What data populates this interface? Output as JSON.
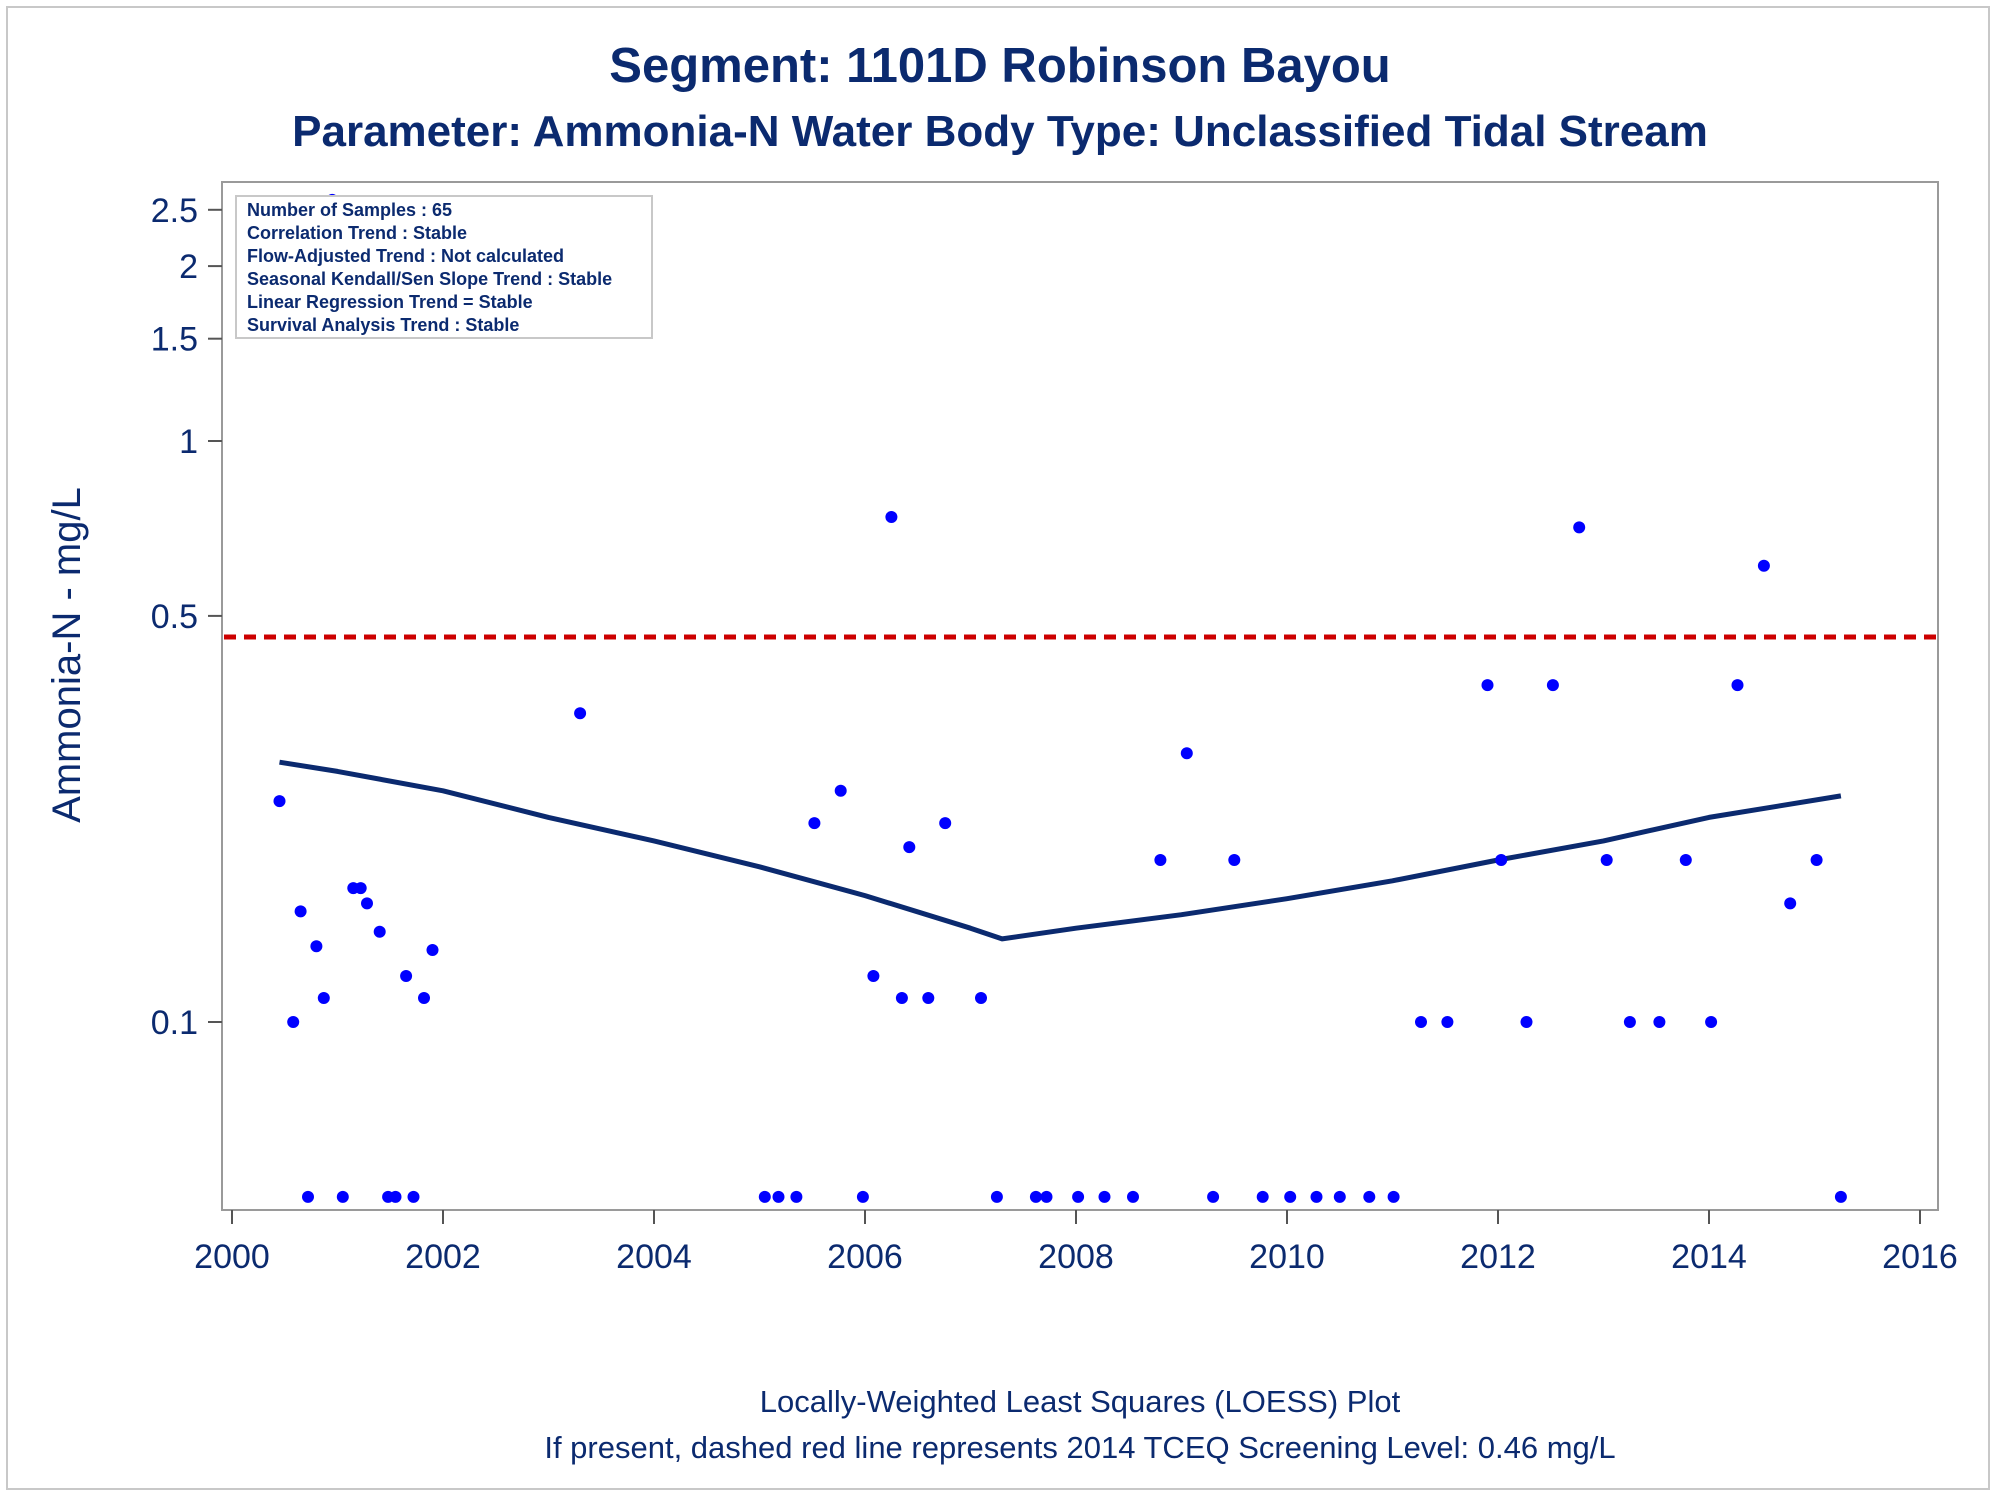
{
  "chart_data": {
    "type": "scatter",
    "title": "Segment: 1101D  Robinson Bayou",
    "subtitle": "Parameter: Ammonia-N   Water Body Type: Unclassified Tidal Stream",
    "xlabel": "",
    "ylabel": "Ammonia-N - mg/L",
    "y_scale": "log",
    "xlim": [
      2000,
      2016
    ],
    "ylim": [
      0.05,
      2.8
    ],
    "x_ticks": [
      "2000",
      "2002",
      "2004",
      "2006",
      "2008",
      "2010",
      "2012",
      "2014",
      "2016"
    ],
    "y_ticks": [
      {
        "value": 0.1,
        "label": "0.1"
      },
      {
        "value": 0.5,
        "label": "0.5"
      },
      {
        "value": 1,
        "label": "1"
      },
      {
        "value": 1.5,
        "label": "1.5"
      },
      {
        "value": 2,
        "label": "2"
      },
      {
        "value": 2.5,
        "label": "2.5"
      }
    ],
    "grid": false,
    "stats_box": {
      "placement": "top-left",
      "lines": [
        "Number of Samples : 65",
        "Correlation Trend : Stable",
        "Flow-Adjusted Trend : Not calculated",
        "Seasonal Kendall/Sen Slope Trend : Stable",
        "Linear Regression Trend = Stable",
        "Survival Analysis Trend : Stable"
      ]
    },
    "screening_level": {
      "value": 0.46,
      "style": "dashed",
      "color": "#cc0000"
    },
    "loess": {
      "color": "#0b2a6f",
      "points": [
        [
          2000.45,
          0.28
        ],
        [
          2001.0,
          0.27
        ],
        [
          2002.0,
          0.25
        ],
        [
          2003.0,
          0.225
        ],
        [
          2004.0,
          0.205
        ],
        [
          2005.0,
          0.185
        ],
        [
          2006.0,
          0.165
        ],
        [
          2007.0,
          0.145
        ],
        [
          2007.3,
          0.139
        ],
        [
          2008.0,
          0.145
        ],
        [
          2009.0,
          0.153
        ],
        [
          2010.0,
          0.163
        ],
        [
          2011.0,
          0.175
        ],
        [
          2012.0,
          0.19
        ],
        [
          2013.0,
          0.205
        ],
        [
          2014.0,
          0.225
        ],
        [
          2015.25,
          0.245
        ]
      ]
    },
    "series": [
      {
        "color": "#0000ff",
        "points": [
          [
            2000.45,
            0.24
          ],
          [
            2000.58,
            0.1
          ],
          [
            2000.65,
            0.155
          ],
          [
            2000.72,
            0.05
          ],
          [
            2000.8,
            0.135
          ],
          [
            2000.87,
            0.11
          ],
          [
            2000.95,
            2.6
          ],
          [
            2001.05,
            0.05
          ],
          [
            2001.15,
            0.17
          ],
          [
            2001.22,
            0.17
          ],
          [
            2001.28,
            0.16
          ],
          [
            2001.4,
            0.143
          ],
          [
            2001.48,
            0.05
          ],
          [
            2001.55,
            0.05
          ],
          [
            2001.65,
            0.12
          ],
          [
            2001.72,
            0.05
          ],
          [
            2001.82,
            0.11
          ],
          [
            2001.9,
            0.133
          ],
          [
            2003.3,
            0.34
          ],
          [
            2005.05,
            0.05
          ],
          [
            2005.18,
            0.05
          ],
          [
            2005.35,
            0.05
          ],
          [
            2005.52,
            0.22
          ],
          [
            2005.77,
            0.25
          ],
          [
            2005.98,
            0.05
          ],
          [
            2006.08,
            0.12
          ],
          [
            2006.25,
            0.74
          ],
          [
            2006.35,
            0.11
          ],
          [
            2006.42,
            0.2
          ],
          [
            2006.6,
            0.11
          ],
          [
            2006.76,
            0.22
          ],
          [
            2007.1,
            0.11
          ],
          [
            2007.25,
            0.05
          ],
          [
            2007.62,
            0.05
          ],
          [
            2007.72,
            0.05
          ],
          [
            2008.02,
            0.05
          ],
          [
            2008.27,
            0.05
          ],
          [
            2008.54,
            0.05
          ],
          [
            2008.8,
            0.19
          ],
          [
            2009.05,
            0.29
          ],
          [
            2009.3,
            0.05
          ],
          [
            2009.5,
            0.19
          ],
          [
            2009.77,
            0.05
          ],
          [
            2010.03,
            0.05
          ],
          [
            2010.28,
            0.05
          ],
          [
            2010.5,
            0.05
          ],
          [
            2010.78,
            0.05
          ],
          [
            2011.01,
            0.05
          ],
          [
            2011.27,
            0.1
          ],
          [
            2011.52,
            0.1
          ],
          [
            2011.9,
            0.38
          ],
          [
            2012.03,
            0.19
          ],
          [
            2012.27,
            0.1
          ],
          [
            2012.52,
            0.38
          ],
          [
            2012.77,
            0.71
          ],
          [
            2013.03,
            0.19
          ],
          [
            2013.25,
            0.1
          ],
          [
            2013.53,
            0.1
          ],
          [
            2013.78,
            0.19
          ],
          [
            2014.02,
            0.1
          ],
          [
            2014.27,
            0.38
          ],
          [
            2014.52,
            0.61
          ],
          [
            2014.77,
            0.16
          ],
          [
            2015.02,
            0.19
          ],
          [
            2015.25,
            0.05
          ]
        ]
      }
    ]
  },
  "footnotes": {
    "line1": "Locally-Weighted Least Squares (LOESS) Plot",
    "line2": "If present, dashed red line represents 2014 TCEQ Screening Level: 0.46 mg/L"
  }
}
